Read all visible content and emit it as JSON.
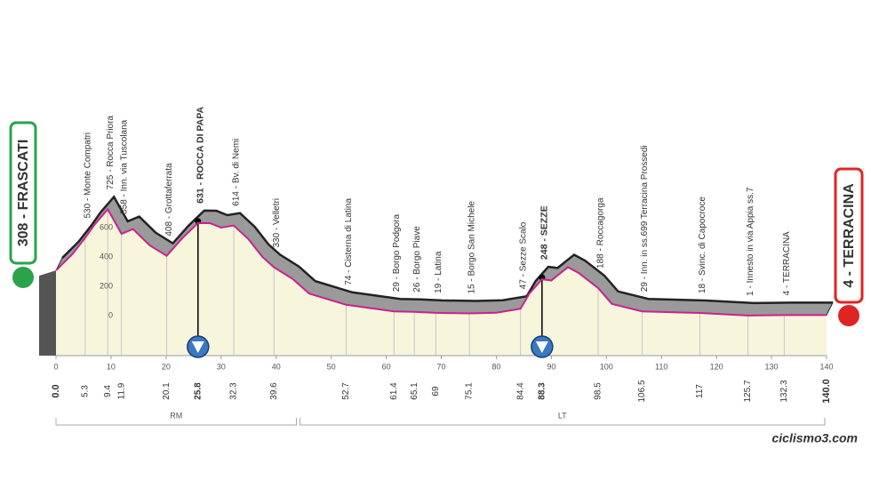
{
  "chart_data": {
    "type": "area",
    "x": [
      0,
      3,
      5.3,
      7,
      9.4,
      11.9,
      14,
      17,
      20.1,
      23,
      25.8,
      28,
      30,
      32.3,
      35,
      37.5,
      39.6,
      43,
      46,
      52.7,
      61.4,
      65.1,
      69,
      75.1,
      80,
      84.4,
      86,
      88.3,
      90,
      93,
      95,
      98.5,
      101,
      106.5,
      117,
      125.7,
      132.3,
      140
    ],
    "values": [
      308,
      420,
      530,
      620,
      725,
      558,
      590,
      480,
      408,
      530,
      631,
      630,
      600,
      614,
      520,
      400,
      330,
      250,
      150,
      74,
      29,
      26,
      19,
      15,
      20,
      47,
      150,
      248,
      240,
      330,
      290,
      188,
      80,
      29,
      18,
      1,
      4,
      4
    ],
    "line_color": "#c8238f",
    "fill_color": "#f7f6dc",
    "shadow_color": "#9a9a9a",
    "xlim": [
      0,
      140
    ],
    "ylim": [
      0,
      800
    ],
    "xticks": [
      0,
      10,
      20,
      30,
      40,
      50,
      60,
      70,
      80,
      90,
      100,
      110,
      120,
      130,
      140
    ],
    "yticks": [
      0,
      200,
      400,
      600
    ],
    "start": {
      "label": "308 - FRASCATI",
      "km": {
        "value": 0,
        "label": "0.0"
      }
    },
    "finish": {
      "label": "4 - TERRACINA",
      "km": {
        "value": 140,
        "label": "140.0"
      }
    },
    "waypoints": [
      {
        "label": "530 - Monte Compatri",
        "km": 5.3
      },
      {
        "label": "725 - Rocca Priora",
        "km": 9.4
      },
      {
        "label": "558 - Inn. via Tuscolana",
        "km": 11.9
      },
      {
        "label": "408 - Grottaferrata",
        "km": 20.1
      },
      {
        "label": "631 - ROCCA DI PAPA",
        "km": 25.8,
        "bold": true
      },
      {
        "label": "614 - Bv. di Nemi",
        "km": 32.3
      },
      {
        "label": "330 - Velletri",
        "km": 39.6
      },
      {
        "label": "74 - Cisterna di Latina",
        "km": 52.7
      },
      {
        "label": "29 - Borgo Podgora",
        "km": 61.4
      },
      {
        "label": "26 - Borgo Piave",
        "km": 65.1
      },
      {
        "label": "19 - Latina",
        "km": 69
      },
      {
        "label": "15 - Borgo San Michele",
        "km": 75.1
      },
      {
        "label": "47 - Sezze Scalo",
        "km": 84.4
      },
      {
        "label": "248 - SEZZE",
        "km": 88.3,
        "bold": true
      },
      {
        "label": "188 - Roccagorga",
        "km": 98.5
      },
      {
        "label": "29 - Inn. in ss.699 Terracina Prossedi",
        "km": 106.5
      },
      {
        "label": "18 - Svinc. di Capocroce",
        "km": 117
      },
      {
        "label": "1 - Innesto in via Appia ss.7",
        "km": 125.7
      },
      {
        "label": "4 - TERRACINA",
        "km": 132.3
      }
    ],
    "regions": [
      {
        "label": "RM",
        "from": 0,
        "to": 44
      },
      {
        "label": "LT",
        "from": 44,
        "to": 140
      }
    ],
    "watermark": "ciclismo3.com"
  }
}
